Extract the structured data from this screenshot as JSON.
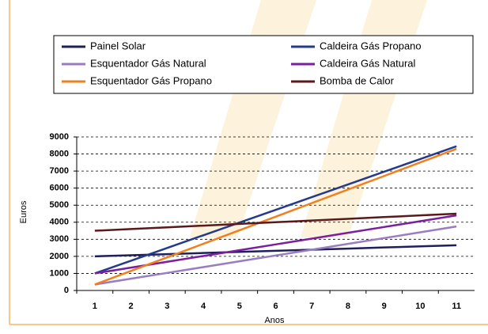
{
  "chart_data": {
    "type": "line",
    "categories": [
      "1",
      "2",
      "3",
      "4",
      "5",
      "6",
      "7",
      "8",
      "9",
      "10",
      "11"
    ],
    "x_label": "Anos",
    "y_label": "Euros",
    "ylim": [
      0,
      9000
    ],
    "yticks": [
      0,
      1000,
      2000,
      3000,
      4000,
      5000,
      6000,
      7000,
      8000,
      9000
    ],
    "grid": true,
    "legend": "top",
    "series": [
      {
        "name": "Painel Solar",
        "color": "#1f1f5c",
        "values": [
          2000,
          2065,
          2130,
          2195,
          2260,
          2325,
          2390,
          2455,
          2520,
          2585,
          2650
        ]
      },
      {
        "name": "Caldeira Gás Propano",
        "color": "#243a8c",
        "values": [
          1000,
          1745,
          2490,
          3235,
          3980,
          4725,
          5470,
          6215,
          6960,
          7705,
          8450
        ]
      },
      {
        "name": "Esquentador Gás Natural",
        "color": "#9a7cc0",
        "values": [
          350,
          690,
          1030,
          1370,
          1710,
          2050,
          2390,
          2730,
          3070,
          3410,
          3750
        ]
      },
      {
        "name": "Caldeira Gás Natural",
        "color": "#7a1fa0",
        "values": [
          1000,
          1340,
          1680,
          2020,
          2360,
          2700,
          3040,
          3380,
          3720,
          4060,
          4400
        ]
      },
      {
        "name": "Esquentador Gás Propano",
        "color": "#f07f1e",
        "values": [
          350,
          1145,
          1940,
          2735,
          3530,
          4325,
          5120,
          5915,
          6710,
          7505,
          8300
        ]
      },
      {
        "name": "Bomba de Calor",
        "color": "#5a1a1a",
        "values": [
          3500,
          3600,
          3700,
          3800,
          3900,
          4000,
          4100,
          4200,
          4300,
          4400,
          4500
        ]
      }
    ]
  }
}
